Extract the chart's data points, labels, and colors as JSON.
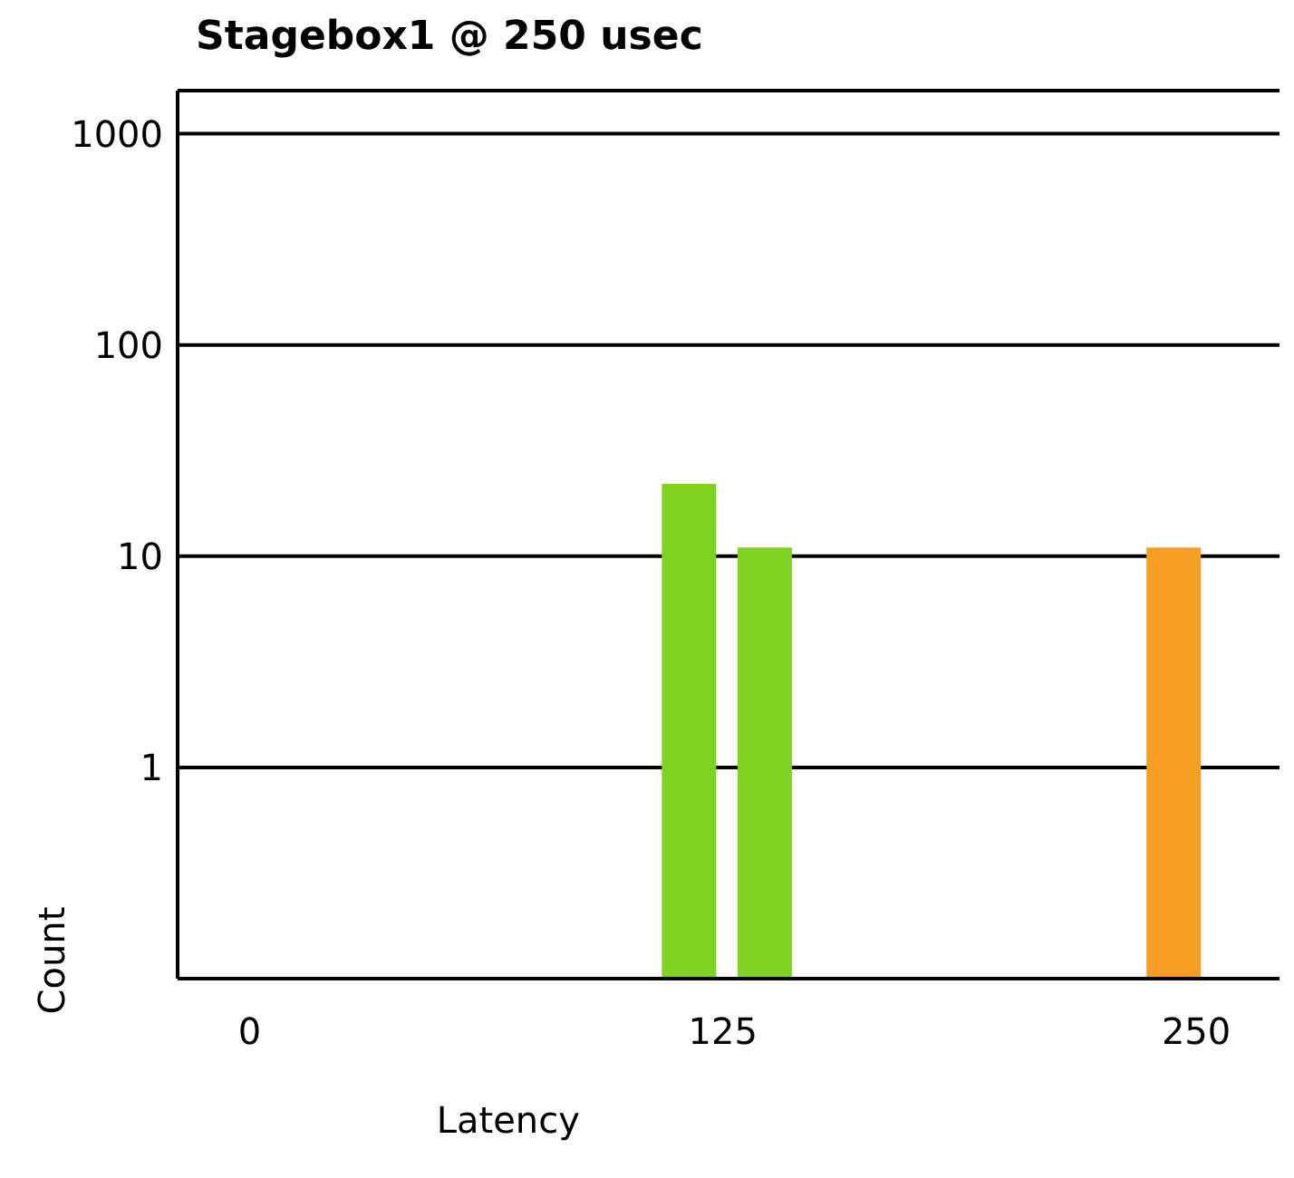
{
  "chart_data": {
    "type": "bar",
    "title": "Stagebox1 @ 250 usec",
    "xlabel": "Latency",
    "ylabel": "Count",
    "x": [
      116,
      136,
      244
    ],
    "values": [
      22,
      11,
      11
    ],
    "colors": [
      "#7ed321",
      "#7ed321",
      "#f5a023"
    ],
    "xlim": [
      -19,
      272
    ],
    "xticks": [
      0,
      125,
      250
    ],
    "ylim": [
      0.1,
      1600
    ],
    "yticks": [
      1,
      10,
      100,
      1000
    ],
    "log": "y",
    "grid": "y"
  }
}
